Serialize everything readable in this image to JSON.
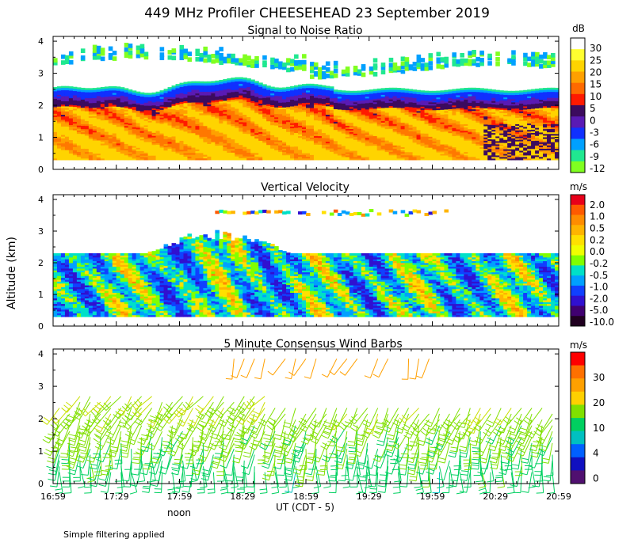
{
  "title": "449 MHz Profiler CHEESEHEAD 23 September 2019",
  "ylabel": "Altitude (km)",
  "xlabel": "UT  (CDT - 5)",
  "noon_label": "noon",
  "footnote": "Simple filtering applied",
  "x_ticks": [
    "16:59",
    "17:29",
    "17:59",
    "18:29",
    "18:59",
    "19:29",
    "19:59",
    "20:29",
    "20:59"
  ],
  "y_ticks": [
    "0",
    "1",
    "2",
    "3",
    "4"
  ],
  "chart_data": [
    {
      "type": "heatmap",
      "title": "Signal to Noise Ratio",
      "ylim": [
        0,
        4
      ],
      "colorbar": {
        "unit": "dB",
        "labels": [
          "30",
          "25",
          "20",
          "15",
          "10",
          "5",
          "0",
          "-3",
          "-6",
          "-9",
          "-12"
        ],
        "colors": [
          "#ffffff",
          "#ffff30",
          "#ffd400",
          "#ffa000",
          "#ff6a00",
          "#ff1a00",
          "#3c0b5e",
          "#5a1ab4",
          "#1030ff",
          "#00a0ff",
          "#20e890",
          "#80ff20"
        ]
      },
      "profile": {
        "strong_top_km": 1.4,
        "layer_top_km": 2.3,
        "layer_max_km": 2.65,
        "upper_band_km": [
          3.0,
          4.0
        ]
      }
    },
    {
      "type": "heatmap",
      "title": "Vertical Velocity",
      "ylim": [
        0,
        4
      ],
      "colorbar": {
        "unit": "m/s",
        "labels": [
          "2.0",
          "1.0",
          "0.5",
          "0.2",
          "0.0",
          "-0.2",
          "-0.5",
          "-1.0",
          "-2.0",
          "-5.0",
          "-10.0"
        ],
        "colors": [
          "#e8001a",
          "#ff5a00",
          "#ff8c00",
          "#ffb400",
          "#ffe000",
          "#f0ff00",
          "#80ff00",
          "#00e0c8",
          "#00a0ff",
          "#1040ff",
          "#3010d0",
          "#400070",
          "#200020"
        ]
      },
      "profile": {
        "layer_top_km": 2.3,
        "layer_max_km": 3.1
      }
    },
    {
      "type": "wind_barbs",
      "title": "5 Minute Consensus Wind Barbs",
      "ylim": [
        0,
        4
      ],
      "interval_minutes": 5,
      "colorbar": {
        "unit": "m/s",
        "labels": [
          "30",
          "20",
          "10",
          "4",
          "0"
        ],
        "colors": [
          "#ff0000",
          "#ff7000",
          "#ffa000",
          "#ffd000",
          "#80e000",
          "#00d060",
          "#00c0c0",
          "#0060ff",
          "#1010c0",
          "#501070"
        ]
      },
      "wind_profile": {
        "speed_low_m_s": 7,
        "speed_high_m_s": 17,
        "direction_low_deg": 170,
        "direction_high_deg": 240
      }
    }
  ]
}
